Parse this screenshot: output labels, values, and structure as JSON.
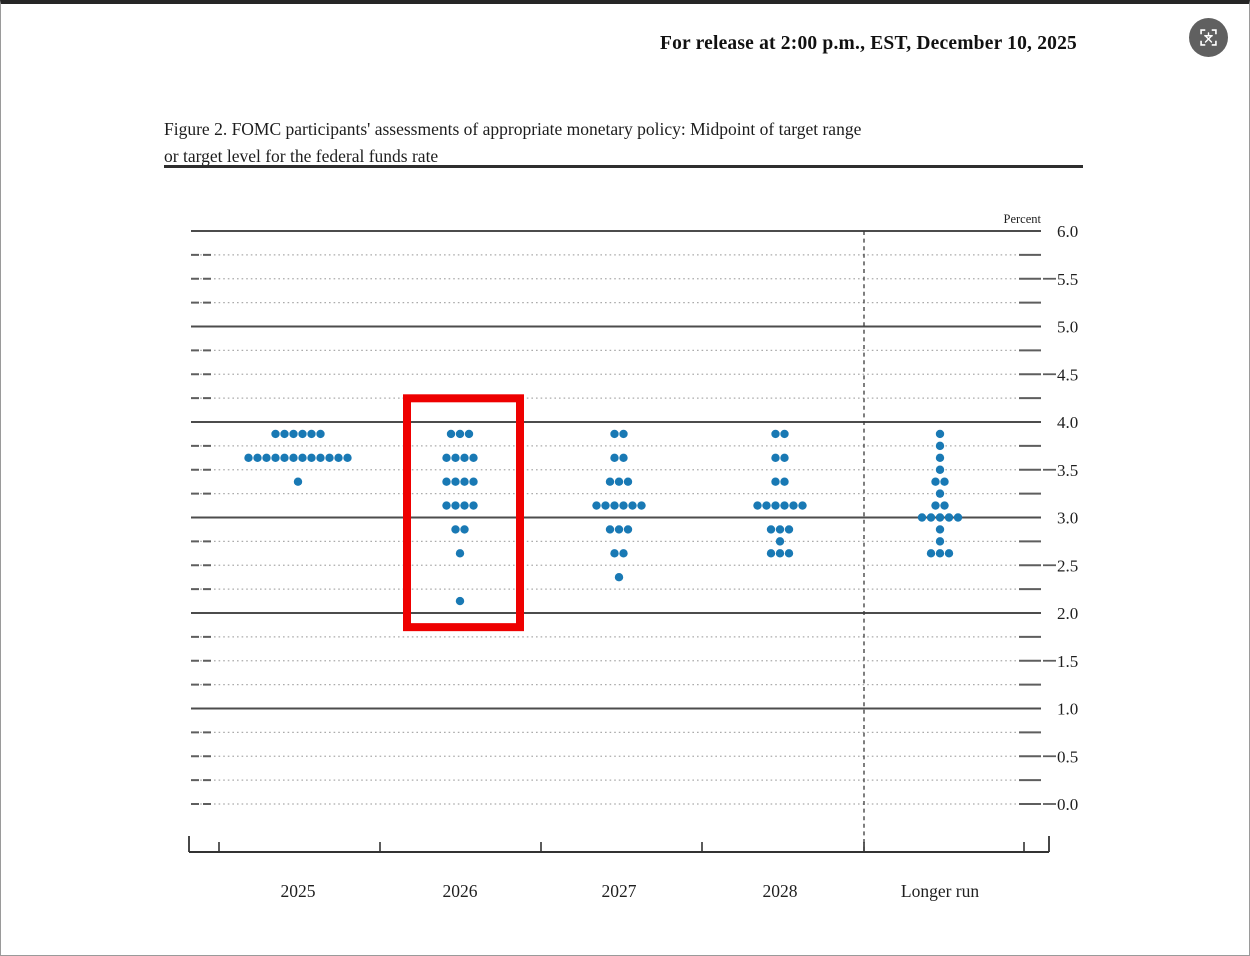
{
  "page": {
    "release_line": "For release at 2:00 p.m., EST, December 10, 2025"
  },
  "figure": {
    "title_line1": "Figure 2. FOMC participants' assessments of appropriate monetary policy: Midpoint of target range",
    "title_line2": "or target level for the federal funds rate"
  },
  "overlay": {
    "icon": "translate-icon"
  },
  "chart_data": {
    "type": "scatter",
    "title": "FOMC participants' assessments of appropriate monetary policy: Midpoint of target range or target level for the federal funds rate",
    "ylabel": "Percent",
    "ylim": [
      0.0,
      6.0
    ],
    "y_label_step": 0.5,
    "y_minor_step": 0.25,
    "y_tick_labels": [
      "6.0",
      "5.5",
      "5.0",
      "4.5",
      "4.0",
      "3.5",
      "3.0",
      "2.5",
      "2.0",
      "1.5",
      "1.0",
      "0.5",
      "0.0"
    ],
    "grid": "solid horizontal lines at integer percents (0.0 shown dotted), dotted lines at each 0.25 with short end ticks, legend none",
    "categories": [
      "2025",
      "2026",
      "2027",
      "2028",
      "Longer run"
    ],
    "separator_before_category": "Longer run",
    "dot_color": "#1979b4",
    "dots_per_column_total": 19,
    "series": [
      {
        "category": "2025",
        "points": [
          {
            "rate": 3.875,
            "count": 6
          },
          {
            "rate": 3.625,
            "count": 12
          },
          {
            "rate": 3.375,
            "count": 1
          }
        ]
      },
      {
        "category": "2026",
        "points": [
          {
            "rate": 3.875,
            "count": 3
          },
          {
            "rate": 3.625,
            "count": 4
          },
          {
            "rate": 3.375,
            "count": 4
          },
          {
            "rate": 3.125,
            "count": 4
          },
          {
            "rate": 2.875,
            "count": 2
          },
          {
            "rate": 2.625,
            "count": 1
          },
          {
            "rate": 2.125,
            "count": 1
          }
        ]
      },
      {
        "category": "2027",
        "points": [
          {
            "rate": 3.875,
            "count": 2
          },
          {
            "rate": 3.625,
            "count": 2
          },
          {
            "rate": 3.375,
            "count": 3
          },
          {
            "rate": 3.125,
            "count": 6
          },
          {
            "rate": 2.875,
            "count": 3
          },
          {
            "rate": 2.625,
            "count": 2
          },
          {
            "rate": 2.375,
            "count": 1
          }
        ]
      },
      {
        "category": "2028",
        "points": [
          {
            "rate": 3.875,
            "count": 2
          },
          {
            "rate": 3.625,
            "count": 2
          },
          {
            "rate": 3.375,
            "count": 2
          },
          {
            "rate": 3.125,
            "count": 6
          },
          {
            "rate": 2.875,
            "count": 3
          },
          {
            "rate": 2.75,
            "count": 1
          },
          {
            "rate": 2.625,
            "count": 3
          }
        ]
      },
      {
        "category": "Longer run",
        "points": [
          {
            "rate": 3.875,
            "count": 1
          },
          {
            "rate": 3.75,
            "count": 1
          },
          {
            "rate": 3.625,
            "count": 1
          },
          {
            "rate": 3.5,
            "count": 1
          },
          {
            "rate": 3.375,
            "count": 2
          },
          {
            "rate": 3.25,
            "count": 1
          },
          {
            "rate": 3.125,
            "count": 2
          },
          {
            "rate": 3.0,
            "count": 5
          },
          {
            "rate": 2.875,
            "count": 1
          },
          {
            "rate": 2.75,
            "count": 1
          },
          {
            "rate": 2.625,
            "count": 3
          }
        ]
      }
    ],
    "highlight": {
      "category": "2026",
      "rate_top": 4.29,
      "rate_bottom": 1.81,
      "color": "#ee0000"
    }
  }
}
